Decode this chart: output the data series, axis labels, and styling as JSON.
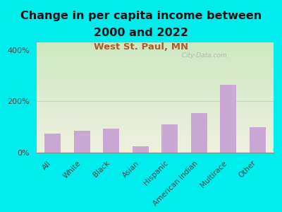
{
  "title_line1": "Change in per capita income between",
  "title_line2": "2000 and 2022",
  "subtitle": "West St. Paul, MN",
  "categories": [
    "All",
    "White",
    "Black",
    "Asian",
    "Hispanic",
    "American Indian",
    "Multirace",
    "Other"
  ],
  "values": [
    75,
    85,
    95,
    25,
    110,
    155,
    265,
    100
  ],
  "bar_color": "#c9a8d4",
  "title_fontsize": 11.5,
  "subtitle_fontsize": 9.5,
  "subtitle_color": "#b05a2a",
  "background_color": "#00eded",
  "plot_bg_top": "#cce8c0",
  "plot_bg_bottom": "#f0f0e0",
  "ylabel_ticks": [
    "0%",
    "200%",
    "400%"
  ],
  "ytick_vals": [
    0,
    200,
    400
  ],
  "ylim": [
    0,
    430
  ],
  "xlim_left": -0.55,
  "xlim_right": 7.55,
  "watermark": "  City-Data.com",
  "hline_y": 200,
  "hline_color": "#cccccc",
  "bar_width": 0.55,
  "tick_fontsize": 7.5,
  "ytick_fontsize": 8
}
